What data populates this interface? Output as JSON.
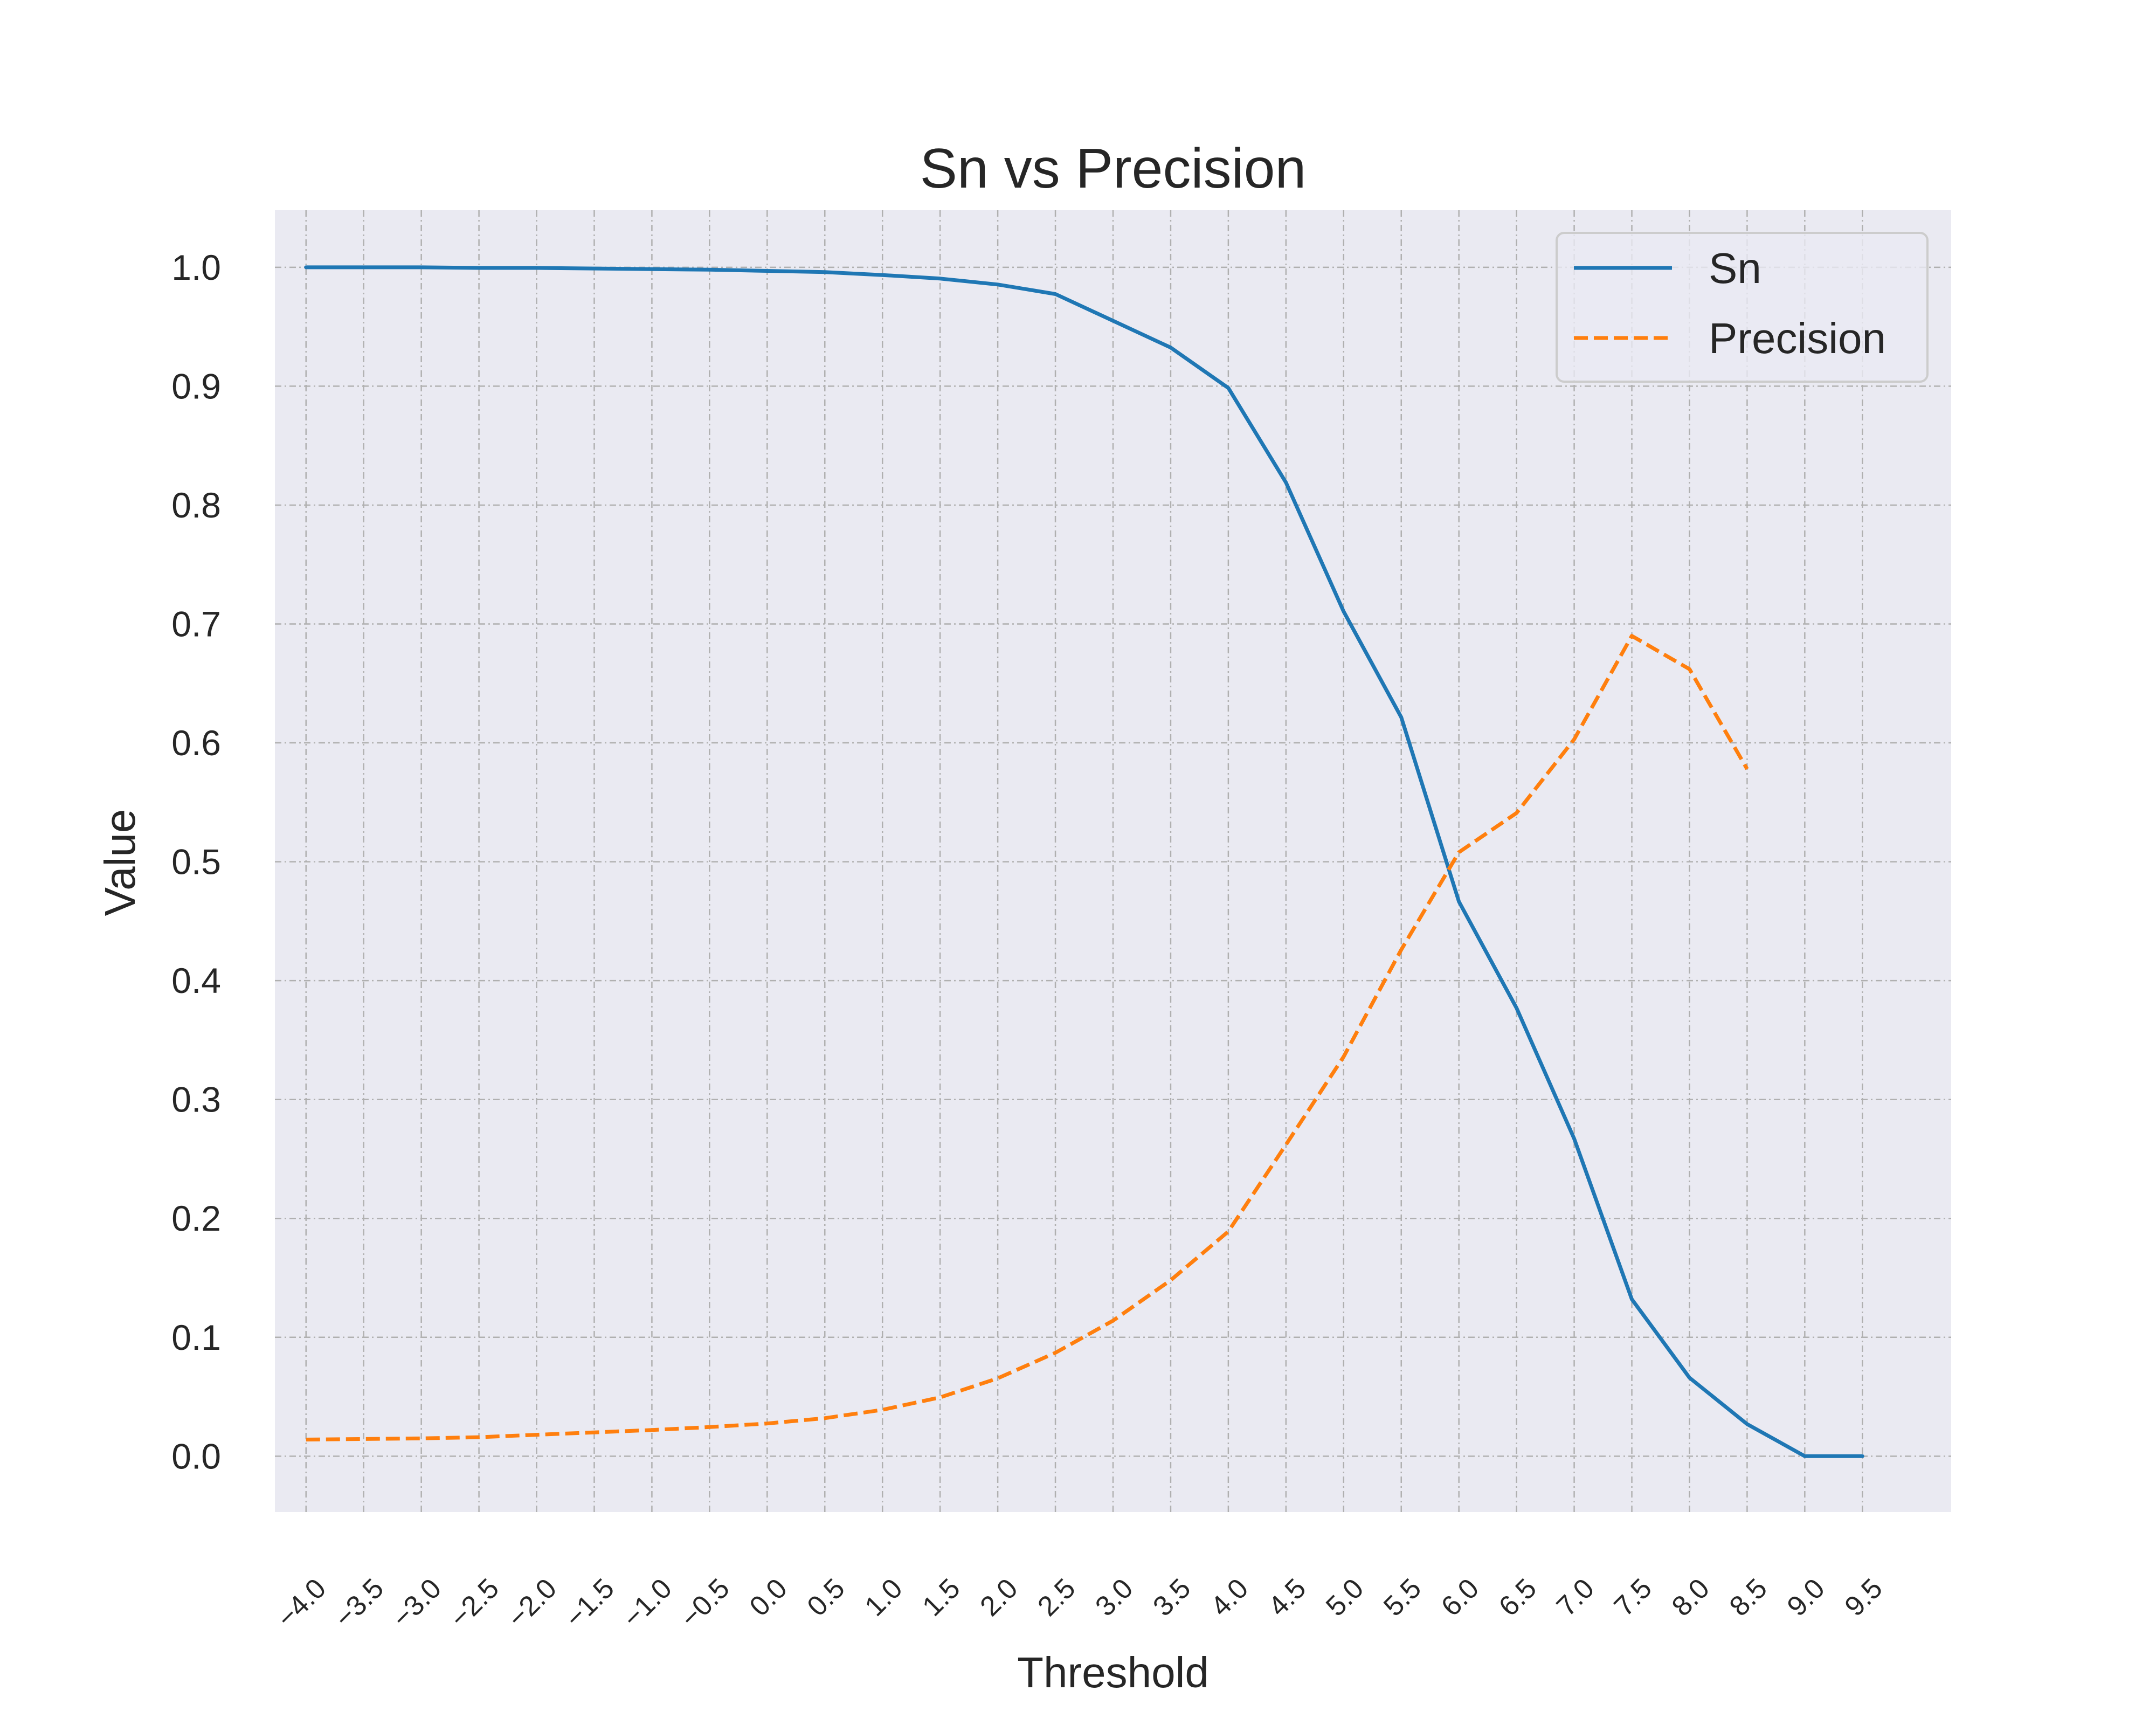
{
  "chart_data": {
    "type": "line",
    "title": "Sn vs Precision",
    "xlabel": "Threshold",
    "ylabel": "Value",
    "x": [
      -4.0,
      -3.5,
      -3.0,
      -2.5,
      -2.0,
      -1.5,
      -1.0,
      -0.5,
      0.0,
      0.5,
      1.0,
      1.5,
      2.0,
      2.5,
      3.0,
      3.5,
      4.0,
      4.5,
      5.0,
      5.5,
      6.0,
      6.5,
      7.0,
      7.5,
      8.0,
      8.5,
      9.0,
      9.5
    ],
    "x_tick_labels": [
      "−4.0",
      "−3.5",
      "−3.0",
      "−2.5",
      "−2.0",
      "−1.5",
      "−1.0",
      "−0.5",
      "0.0",
      "0.5",
      "1.0",
      "1.5",
      "2.0",
      "2.5",
      "3.0",
      "3.5",
      "4.0",
      "4.5",
      "5.0",
      "5.5",
      "6.0",
      "6.5",
      "7.0",
      "7.5",
      "8.0",
      "8.5",
      "9.0",
      "9.5"
    ],
    "y_ticks": [
      0.0,
      0.1,
      0.2,
      0.3,
      0.4,
      0.5,
      0.6,
      0.7,
      0.8,
      0.9,
      1.0
    ],
    "y_tick_labels": [
      "0.0",
      "0.1",
      "0.2",
      "0.3",
      "0.4",
      "0.5",
      "0.6",
      "0.7",
      "0.8",
      "0.9",
      "1.0"
    ],
    "xlim": [
      -4.27,
      10.27
    ],
    "ylim": [
      -0.047,
      1.048
    ],
    "grid": true,
    "legend_position": "top-right",
    "series": [
      {
        "name": "Sn",
        "color": "#1f77b4",
        "style": "solid",
        "values": [
          1.0,
          1.0,
          1.0,
          0.9995,
          0.9995,
          0.999,
          0.9985,
          0.998,
          0.997,
          0.996,
          0.9935,
          0.9905,
          0.9855,
          0.9775,
          0.955,
          0.9325,
          0.8985,
          0.819,
          0.7105,
          0.6215,
          0.4665,
          0.377,
          0.267,
          0.132,
          0.066,
          0.027,
          0.0,
          0.0
        ]
      },
      {
        "name": "Precision",
        "color": "#ff7f0e",
        "style": "dashed",
        "values": [
          0.014,
          0.0145,
          0.015,
          0.016,
          0.018,
          0.02,
          0.022,
          0.0245,
          0.0275,
          0.032,
          0.039,
          0.0495,
          0.0655,
          0.087,
          0.114,
          0.148,
          0.189,
          0.262,
          0.336,
          0.426,
          0.508,
          0.541,
          0.603,
          0.69,
          0.662,
          0.578,
          null,
          null
        ]
      }
    ],
    "colors": {
      "plot_background": "#eaeaf2",
      "grid": "#b0b0b0"
    }
  }
}
